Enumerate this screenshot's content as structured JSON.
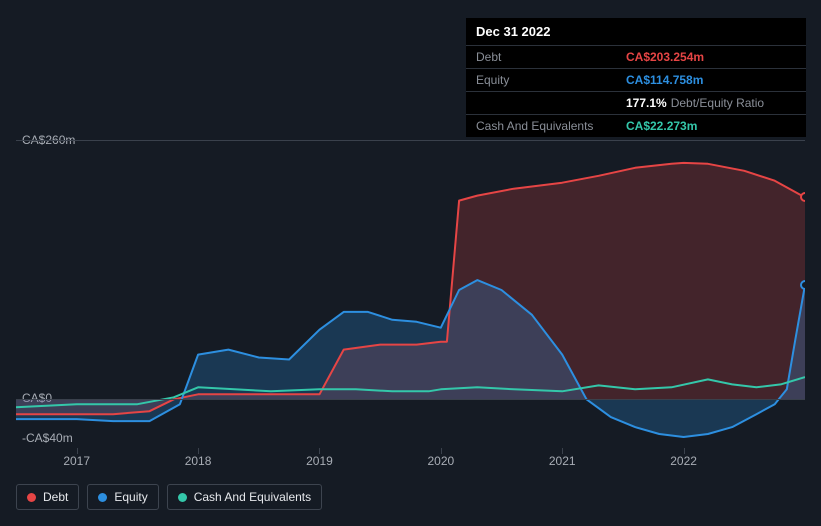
{
  "tooltip": {
    "title": "Dec 31 2022",
    "rows": [
      {
        "label": "Debt",
        "value": "CA$203.254m",
        "color": "#e64545",
        "extra": ""
      },
      {
        "label": "Equity",
        "value": "CA$114.758m",
        "color": "#2d8fe0",
        "extra": ""
      },
      {
        "label": "",
        "value": "177.1%",
        "color": "#ffffff",
        "extra": "Debt/Equity Ratio"
      },
      {
        "label": "Cash And Equivalents",
        "value": "CA$22.273m",
        "color": "#34c7aa",
        "extra": ""
      }
    ]
  },
  "chart": {
    "type": "area",
    "background": "#151b24",
    "grid_color": "#3a414c",
    "y_min": -40,
    "y_max": 260,
    "y_zero": 0,
    "y_labels": [
      {
        "v": 260,
        "text": "CA$260m"
      },
      {
        "v": 0,
        "text": "CA$0"
      },
      {
        "v": -40,
        "text": "-CA$40m"
      }
    ],
    "x_labels": [
      "2017",
      "2018",
      "2019",
      "2020",
      "2021",
      "2022"
    ],
    "x_min": 2016.5,
    "x_max": 2023.0,
    "series": {
      "debt": {
        "color": "#e64545",
        "fill": "rgba(230,69,69,0.22)",
        "data": [
          [
            2016.5,
            -15
          ],
          [
            2017.0,
            -15
          ],
          [
            2017.3,
            -15
          ],
          [
            2017.6,
            -12
          ],
          [
            2017.8,
            0
          ],
          [
            2018.0,
            5
          ],
          [
            2018.3,
            5
          ],
          [
            2018.6,
            5
          ],
          [
            2019.0,
            5
          ],
          [
            2019.2,
            50
          ],
          [
            2019.5,
            55
          ],
          [
            2019.8,
            55
          ],
          [
            2020.0,
            58
          ],
          [
            2020.05,
            58
          ],
          [
            2020.15,
            200
          ],
          [
            2020.3,
            205
          ],
          [
            2020.6,
            212
          ],
          [
            2021.0,
            218
          ],
          [
            2021.3,
            225
          ],
          [
            2021.6,
            233
          ],
          [
            2021.9,
            237
          ],
          [
            2022.0,
            238
          ],
          [
            2022.2,
            237
          ],
          [
            2022.5,
            230
          ],
          [
            2022.75,
            220
          ],
          [
            2023.0,
            203.254
          ]
        ]
      },
      "equity": {
        "color": "#2d8fe0",
        "fill": "rgba(45,143,224,0.25)",
        "data": [
          [
            2016.5,
            -20
          ],
          [
            2017.0,
            -20
          ],
          [
            2017.3,
            -22
          ],
          [
            2017.6,
            -22
          ],
          [
            2017.85,
            -5
          ],
          [
            2018.0,
            45
          ],
          [
            2018.25,
            50
          ],
          [
            2018.5,
            42
          ],
          [
            2018.75,
            40
          ],
          [
            2019.0,
            70
          ],
          [
            2019.2,
            88
          ],
          [
            2019.4,
            88
          ],
          [
            2019.6,
            80
          ],
          [
            2019.8,
            78
          ],
          [
            2020.0,
            72
          ],
          [
            2020.15,
            110
          ],
          [
            2020.3,
            120
          ],
          [
            2020.5,
            110
          ],
          [
            2020.75,
            85
          ],
          [
            2021.0,
            45
          ],
          [
            2021.2,
            0
          ],
          [
            2021.4,
            -18
          ],
          [
            2021.6,
            -28
          ],
          [
            2021.8,
            -35
          ],
          [
            2022.0,
            -38
          ],
          [
            2022.2,
            -35
          ],
          [
            2022.4,
            -28
          ],
          [
            2022.6,
            -15
          ],
          [
            2022.75,
            -5
          ],
          [
            2022.85,
            10
          ],
          [
            2022.92,
            60
          ],
          [
            2023.0,
            115
          ]
        ]
      },
      "cash": {
        "color": "#34c7aa",
        "fill": "none",
        "data": [
          [
            2016.5,
            -8
          ],
          [
            2017.0,
            -5
          ],
          [
            2017.5,
            -5
          ],
          [
            2017.8,
            2
          ],
          [
            2018.0,
            12
          ],
          [
            2018.3,
            10
          ],
          [
            2018.6,
            8
          ],
          [
            2019.0,
            10
          ],
          [
            2019.3,
            10
          ],
          [
            2019.6,
            8
          ],
          [
            2019.9,
            8
          ],
          [
            2020.0,
            10
          ],
          [
            2020.3,
            12
          ],
          [
            2020.6,
            10
          ],
          [
            2021.0,
            8
          ],
          [
            2021.3,
            14
          ],
          [
            2021.6,
            10
          ],
          [
            2021.9,
            12
          ],
          [
            2022.2,
            20
          ],
          [
            2022.4,
            15
          ],
          [
            2022.6,
            12
          ],
          [
            2022.8,
            15
          ],
          [
            2023.0,
            22.273
          ]
        ]
      }
    },
    "markers": [
      {
        "x": 2023.0,
        "y": 203.254,
        "stroke": "#e64545"
      },
      {
        "x": 2023.0,
        "y": 115,
        "stroke": "#2d8fe0"
      }
    ]
  },
  "legend": [
    {
      "label": "Debt",
      "color": "#e64545"
    },
    {
      "label": "Equity",
      "color": "#2d8fe0"
    },
    {
      "label": "Cash And Equivalents",
      "color": "#34c7aa"
    }
  ]
}
